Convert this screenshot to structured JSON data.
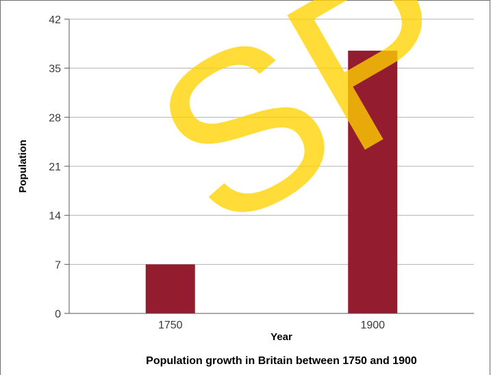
{
  "chart_data": {
    "type": "bar",
    "title": "Population growth in Britain between 1750 and 1900",
    "xlabel": "Year",
    "ylabel": "Population",
    "categories": [
      "1750",
      "1900"
    ],
    "values": [
      7,
      37.5
    ],
    "ylim": [
      0,
      42
    ],
    "yticks": [
      0,
      7,
      14,
      21,
      28,
      35,
      42
    ],
    "grid": true,
    "legend": "none",
    "bar_color": "#931c2f"
  },
  "watermark": {
    "text": "SP",
    "color": "#ffd300"
  }
}
